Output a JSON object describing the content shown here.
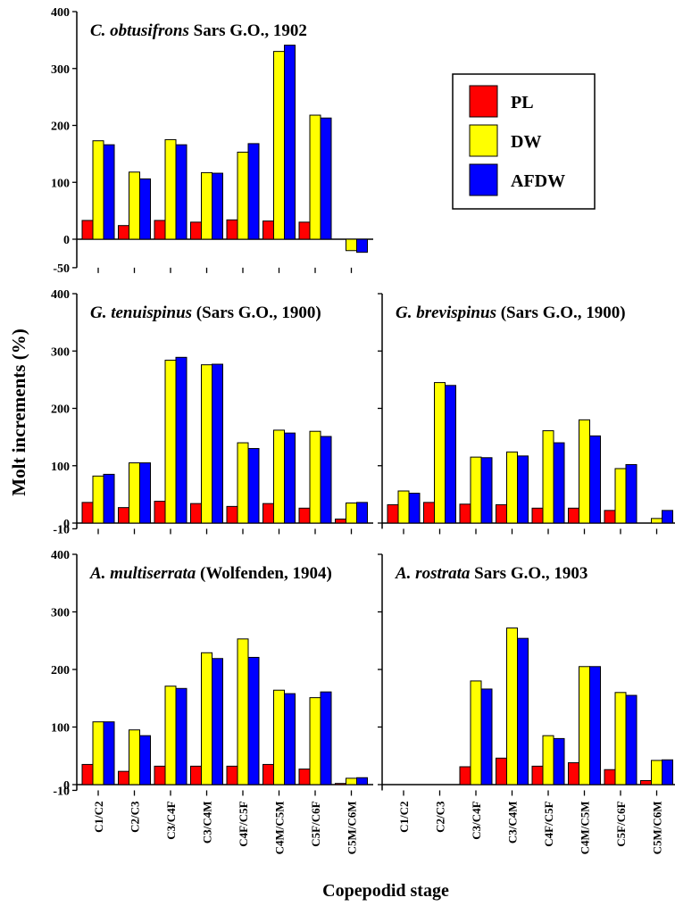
{
  "figure": {
    "ylabel": "Molt increments (%)",
    "xlabel": "Copepodid stage"
  },
  "legend": {
    "position": "top-right",
    "items": [
      {
        "label": "PL",
        "color": "#ff0000"
      },
      {
        "label": "DW",
        "color": "#ffff00"
      },
      {
        "label": "AFDW",
        "color": "#0000ff"
      }
    ]
  },
  "chart_data": [
    {
      "type": "bar",
      "title_italic": "C. obtusifrons",
      "title_rest": " Sars G.O., 1902",
      "ylim": [
        -50,
        400
      ],
      "yticks": [
        -50,
        0,
        100,
        200,
        300,
        400
      ],
      "categories": [
        "C1/C2",
        "C2/C3",
        "C3/C4F",
        "C3/C4M",
        "C4F/C5F",
        "C4M/C5M",
        "C5F/C6F",
        "C5M/C6M"
      ],
      "show_tick_labels": false,
      "series": [
        {
          "name": "PL",
          "values": [
            33,
            24,
            33,
            30,
            34,
            32,
            30,
            null
          ]
        },
        {
          "name": "DW",
          "values": [
            173,
            118,
            175,
            117,
            153,
            330,
            218,
            -20
          ]
        },
        {
          "name": "AFDW",
          "values": [
            166,
            106,
            166,
            116,
            168,
            341,
            213,
            -23
          ]
        }
      ]
    },
    {
      "type": "bar",
      "title_italic": "G. tenuispinus",
      "title_rest": " (Sars G.O., 1900)",
      "ylim": [
        -10,
        400
      ],
      "yticks": [
        -10,
        0,
        100,
        200,
        300,
        400
      ],
      "categories": [
        "C1/C2",
        "C2/C3",
        "C3/C4F",
        "C3/C4M",
        "C4F/C5F",
        "C4M/C5M",
        "C5F/C6F",
        "C5M/C6M"
      ],
      "show_tick_labels": false,
      "series": [
        {
          "name": "PL",
          "values": [
            36,
            27,
            38,
            34,
            29,
            34,
            26,
            7
          ]
        },
        {
          "name": "DW",
          "values": [
            82,
            105,
            284,
            276,
            140,
            162,
            160,
            35
          ]
        },
        {
          "name": "AFDW",
          "values": [
            85,
            105,
            289,
            277,
            130,
            157,
            151,
            36
          ]
        }
      ]
    },
    {
      "type": "bar",
      "title_italic": "G. brevispinus",
      "title_rest": " (Sars G.O., 1900)",
      "ylim": [
        -10,
        400
      ],
      "yticks": [],
      "categories": [
        "C1/C2",
        "C2/C3",
        "C3/C4F",
        "C3/C4M",
        "C4F/C5F",
        "C4M/C5M",
        "C5F/C6F",
        "C5M/C6M"
      ],
      "show_tick_labels": false,
      "series": [
        {
          "name": "PL",
          "values": [
            32,
            36,
            33,
            32,
            26,
            26,
            22,
            null
          ]
        },
        {
          "name": "DW",
          "values": [
            56,
            245,
            115,
            124,
            161,
            180,
            95,
            8
          ]
        },
        {
          "name": "AFDW",
          "values": [
            52,
            240,
            114,
            117,
            140,
            152,
            102,
            22
          ]
        }
      ]
    },
    {
      "type": "bar",
      "title_italic": "A. multiserrata",
      "title_rest": " (Wolfenden, 1904)",
      "ylim": [
        -10,
        400
      ],
      "yticks": [
        -10,
        0,
        100,
        200,
        300,
        400
      ],
      "categories": [
        "C1/C2",
        "C2/C3",
        "C3/C4F",
        "C3/C4M",
        "C4F/C5F",
        "C4M/C5M",
        "C5F/C6F",
        "C5M/C6M"
      ],
      "show_tick_labels": true,
      "series": [
        {
          "name": "PL",
          "values": [
            35,
            23,
            32,
            32,
            32,
            35,
            27,
            2
          ]
        },
        {
          "name": "DW",
          "values": [
            109,
            95,
            171,
            229,
            253,
            164,
            151,
            11
          ]
        },
        {
          "name": "AFDW",
          "values": [
            109,
            85,
            167,
            219,
            221,
            158,
            161,
            12
          ]
        }
      ]
    },
    {
      "type": "bar",
      "title_italic": "A. rostrata",
      "title_rest": " Sars G.O., 1903",
      "ylim": [
        -10,
        400
      ],
      "yticks": [],
      "categories": [
        "C1/C2",
        "C2/C3",
        "C3/C4F",
        "C3/C4M",
        "C4F/C5F",
        "C4M/C5M",
        "C5F/C6F",
        "C5M/C6M"
      ],
      "show_tick_labels": true,
      "series": [
        {
          "name": "PL",
          "values": [
            null,
            null,
            31,
            46,
            32,
            38,
            26,
            7
          ]
        },
        {
          "name": "DW",
          "values": [
            null,
            null,
            180,
            272,
            85,
            205,
            160,
            42
          ]
        },
        {
          "name": "AFDW",
          "values": [
            null,
            null,
            166,
            254,
            80,
            205,
            155,
            43
          ]
        }
      ]
    }
  ]
}
